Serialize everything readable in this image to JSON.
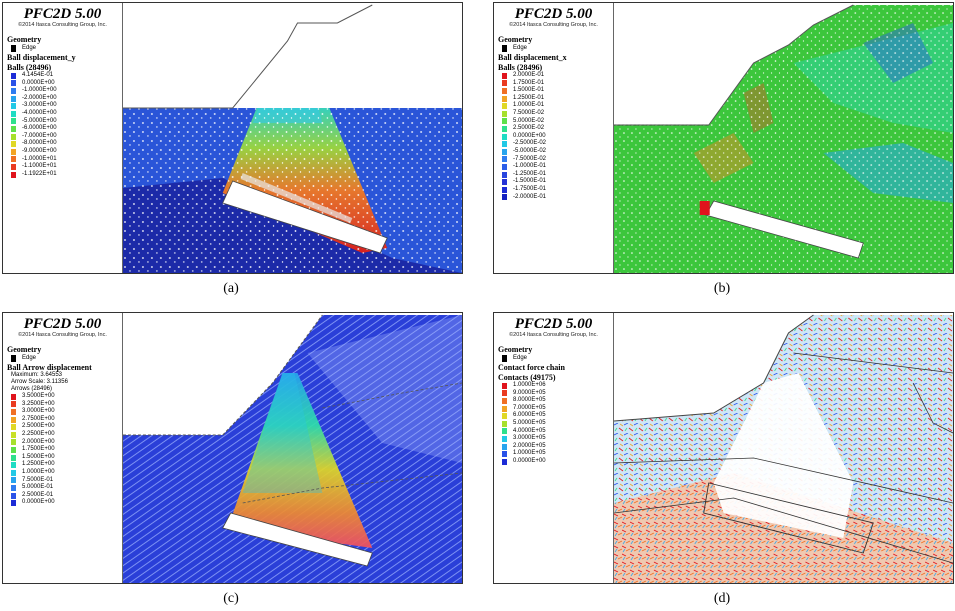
{
  "panels": [
    {
      "caption": "(a)",
      "title": "PFC2D 5.00",
      "copyright": "©2014 Itasca Consulting Group, Inc.",
      "geometry": "Geometry",
      "edge": "Edge",
      "variable": "Ball displacement_y",
      "count": "Balls (28496)",
      "extra": [],
      "entries": [
        {
          "label": "4.1454E-01",
          "color": "#1c2bd6"
        },
        {
          "label": "0.0000E+00",
          "color": "#2a52e8"
        },
        {
          "label": "-1.0000E+00",
          "color": "#2f7cf0"
        },
        {
          "label": "-2.0000E+00",
          "color": "#27a4ee"
        },
        {
          "label": "-3.0000E+00",
          "color": "#22c9e6"
        },
        {
          "label": "-4.0000E+00",
          "color": "#1fdcc4"
        },
        {
          "label": "-5.0000E+00",
          "color": "#2fe08c"
        },
        {
          "label": "-6.0000E+00",
          "color": "#5ee04a"
        },
        {
          "label": "-7.0000E+00",
          "color": "#a6e02c"
        },
        {
          "label": "-8.0000E+00",
          "color": "#e0d826"
        },
        {
          "label": "-9.0000E+00",
          "color": "#f2a424"
        },
        {
          "label": "-1.0000E+01",
          "color": "#f07024"
        },
        {
          "label": "-1.1000E+01",
          "color": "#ea3b20"
        },
        {
          "label": "-1.1922E+01",
          "color": "#e0141c"
        }
      ]
    },
    {
      "caption": "(b)",
      "title": "PFC2D 5.00",
      "copyright": "©2014 Itasca Consulting Group, Inc.",
      "geometry": "Geometry",
      "edge": "Edge",
      "variable": "Ball displacement_x",
      "count": "Balls (28496)",
      "extra": [],
      "entries": [
        {
          "label": "2.0000E-01",
          "color": "#e0141c"
        },
        {
          "label": "1.7500E-01",
          "color": "#ea3b20"
        },
        {
          "label": "1.5000E-01",
          "color": "#f07024"
        },
        {
          "label": "1.2500E-01",
          "color": "#f2a424"
        },
        {
          "label": "1.0000E-01",
          "color": "#e0d826"
        },
        {
          "label": "7.5000E-02",
          "color": "#a6e02c"
        },
        {
          "label": "5.0000E-02",
          "color": "#5ee04a"
        },
        {
          "label": "2.5000E-02",
          "color": "#2fe08c"
        },
        {
          "label": "0.0000E+00",
          "color": "#1fdcc4"
        },
        {
          "label": "-2.5000E-02",
          "color": "#22c9e6"
        },
        {
          "label": "-5.0000E-02",
          "color": "#27a4ee"
        },
        {
          "label": "-7.5000E-02",
          "color": "#2f7cf0"
        },
        {
          "label": "-1.0000E-01",
          "color": "#2a5ee8"
        },
        {
          "label": "-1.2500E-01",
          "color": "#2845de"
        },
        {
          "label": "-1.5000E-01",
          "color": "#2533d6"
        },
        {
          "label": "-1.7500E-01",
          "color": "#1c2bd6"
        },
        {
          "label": "-2.0000E-01",
          "color": "#1420c0"
        }
      ]
    },
    {
      "caption": "(c)",
      "title": "PFC2D 5.00",
      "copyright": "©2014 Itasca Consulting Group, Inc.",
      "geometry": "Geometry",
      "edge": "Edge",
      "variable": "Ball Arrow displacement",
      "count": "Arrows (28496)",
      "extra": [
        "Maximum:  3.64553",
        "Arrow Scale:  3.11356"
      ],
      "entries": [
        {
          "label": "3.5000E+00",
          "color": "#e0141c"
        },
        {
          "label": "3.2500E+00",
          "color": "#ea3b20"
        },
        {
          "label": "3.0000E+00",
          "color": "#f07024"
        },
        {
          "label": "2.7500E+00",
          "color": "#f2a424"
        },
        {
          "label": "2.5000E+00",
          "color": "#e0d826"
        },
        {
          "label": "2.2500E+00",
          "color": "#c8e028"
        },
        {
          "label": "2.0000E+00",
          "color": "#a6e02c"
        },
        {
          "label": "1.7500E+00",
          "color": "#5ee04a"
        },
        {
          "label": "1.5000E+00",
          "color": "#2fe08c"
        },
        {
          "label": "1.2500E+00",
          "color": "#1fdcc4"
        },
        {
          "label": "1.0000E+00",
          "color": "#22c9e6"
        },
        {
          "label": "7.5000E-01",
          "color": "#27a4ee"
        },
        {
          "label": "5.0000E-01",
          "color": "#2f7cf0"
        },
        {
          "label": "2.5000E-01",
          "color": "#2a52e8"
        },
        {
          "label": "0.0000E+00",
          "color": "#1c2bd6"
        }
      ]
    },
    {
      "caption": "(d)",
      "title": "PFC2D 5.00",
      "copyright": "©2014 Itasca Consulting Group, Inc.",
      "geometry": "Geometry",
      "edge": "Edge",
      "variable": "Contact force chain",
      "count": "Contacts (49175)",
      "extra": [],
      "entries": [
        {
          "label": "1.0000E+06",
          "color": "#e0141c"
        },
        {
          "label": "9.0000E+05",
          "color": "#ea3b20"
        },
        {
          "label": "8.0000E+05",
          "color": "#f07024"
        },
        {
          "label": "7.0000E+05",
          "color": "#f2a424"
        },
        {
          "label": "6.0000E+05",
          "color": "#e0d826"
        },
        {
          "label": "5.0000E+05",
          "color": "#a6e02c"
        },
        {
          "label": "4.0000E+05",
          "color": "#2fe08c"
        },
        {
          "label": "3.0000E+05",
          "color": "#22c9e6"
        },
        {
          "label": "2.0000E+05",
          "color": "#27a4ee"
        },
        {
          "label": "1.0000E+05",
          "color": "#2a52e8"
        },
        {
          "label": "0.0000E+00",
          "color": "#1c2bd6"
        }
      ]
    }
  ]
}
